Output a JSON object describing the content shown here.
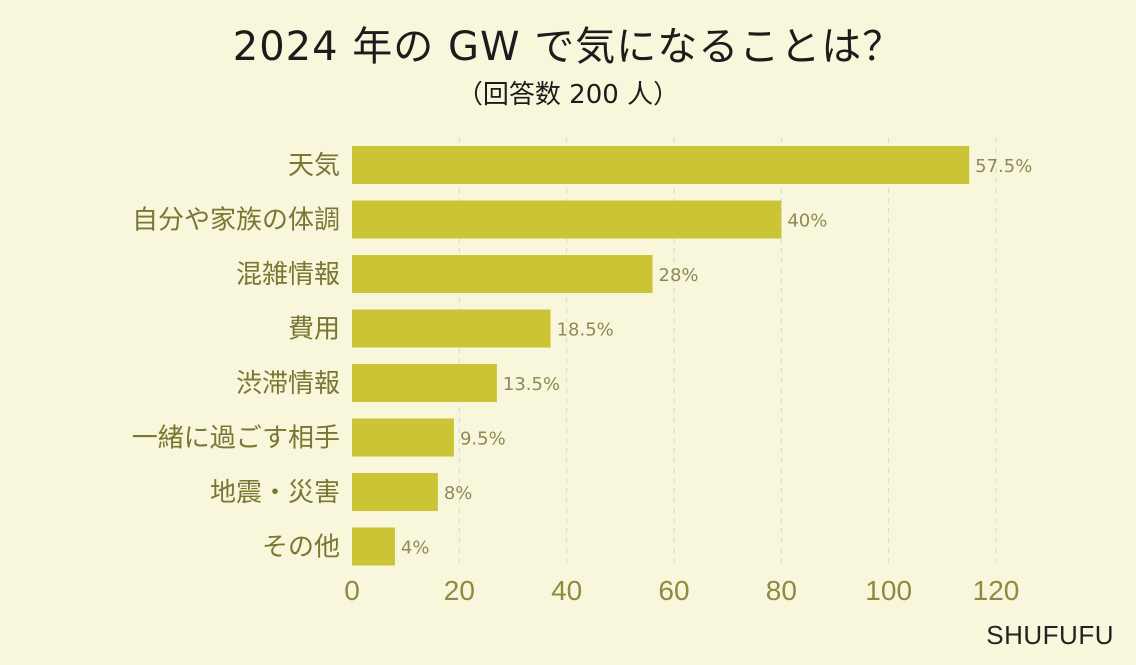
{
  "title": "2024 年の GW で気になることは？",
  "subtitle": "（回答数 200 人）",
  "watermark": "SHUFUFU",
  "chart_data": {
    "type": "bar",
    "orientation": "horizontal",
    "categories": [
      "天気",
      "自分や家族の体調",
      "混雑情報",
      "費用",
      "渋滞情報",
      "一緒に過ごす相手",
      "地震・災害",
      "その他"
    ],
    "values": [
      115,
      80,
      56,
      37,
      27,
      19,
      16,
      8
    ],
    "value_labels": [
      "57.5%",
      "40%",
      "28%",
      "18.5%",
      "13.5%",
      "9.5%",
      "8%",
      "4%"
    ],
    "xlim": [
      0,
      120
    ],
    "xticks": [
      0,
      20,
      40,
      60,
      80,
      100,
      120
    ],
    "grid": true,
    "bar_color": "#cbc434"
  }
}
